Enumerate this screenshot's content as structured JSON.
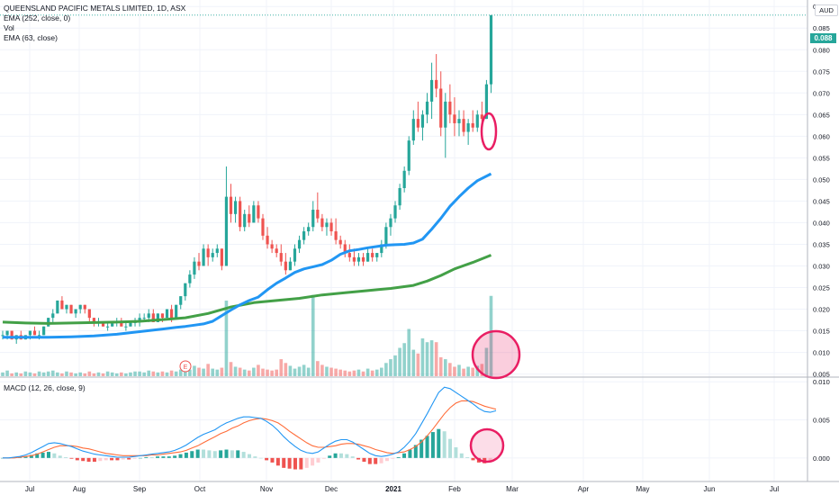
{
  "legend": {
    "title": "QUEENSLAND PACIFIC METALS LIMITED, 1D, ASX",
    "ema_slow": "EMA (252, close, 0)",
    "vol": "Vol",
    "ema_fast": "EMA (63, close)",
    "macd": "MACD (12, 26, close, 9)"
  },
  "currency": "AUD",
  "last_price_label": "0.088",
  "colors": {
    "up": "#26a69a",
    "down": "#ef5350",
    "ema_fast": "#2196f3",
    "ema_slow": "#43a047",
    "macd_line": "#2196f3",
    "signal_line": "#ff6d3a",
    "annotation": "#e91e63"
  },
  "chart_data": [
    {
      "type": "candlestick",
      "ylim": [
        0.0045,
        0.0915
      ],
      "y_ticks": [
        "0.090",
        "0.085",
        "0.080",
        "0.075",
        "0.070",
        "0.065",
        "0.060",
        "0.055",
        "0.050",
        "0.045",
        "0.040",
        "0.035",
        "0.030",
        "0.025",
        "0.020",
        "0.015",
        "0.010",
        "0.005"
      ],
      "x_ticks": [
        "Jul",
        "Aug",
        "Sep",
        "Oct",
        "Nov",
        "Dec",
        "2021",
        "Feb",
        "Mar",
        "Apr",
        "May",
        "Jun",
        "Jul"
      ],
      "candles": [
        [
          0.014,
          0.015,
          0.013,
          0.014
        ],
        [
          0.014,
          0.015,
          0.013,
          0.015
        ],
        [
          0.015,
          0.015,
          0.013,
          0.013
        ],
        [
          0.013,
          0.014,
          0.012,
          0.014
        ],
        [
          0.014,
          0.015,
          0.013,
          0.013
        ],
        [
          0.013,
          0.014,
          0.013,
          0.014
        ],
        [
          0.014,
          0.015,
          0.013,
          0.015
        ],
        [
          0.015,
          0.016,
          0.014,
          0.014
        ],
        [
          0.014,
          0.015,
          0.013,
          0.014
        ],
        [
          0.014,
          0.016,
          0.014,
          0.016
        ],
        [
          0.016,
          0.018,
          0.016,
          0.018
        ],
        [
          0.018,
          0.02,
          0.017,
          0.019
        ],
        [
          0.019,
          0.022,
          0.019,
          0.022
        ],
        [
          0.022,
          0.023,
          0.02,
          0.02
        ],
        [
          0.02,
          0.021,
          0.019,
          0.021
        ],
        [
          0.021,
          0.021,
          0.019,
          0.019
        ],
        [
          0.019,
          0.02,
          0.018,
          0.02
        ],
        [
          0.02,
          0.021,
          0.019,
          0.021
        ],
        [
          0.021,
          0.021,
          0.019,
          0.02
        ],
        [
          0.02,
          0.02,
          0.017,
          0.018
        ],
        [
          0.018,
          0.018,
          0.016,
          0.017
        ],
        [
          0.017,
          0.018,
          0.016,
          0.017
        ],
        [
          0.017,
          0.017,
          0.016,
          0.016
        ],
        [
          0.016,
          0.017,
          0.015,
          0.016
        ],
        [
          0.016,
          0.017,
          0.016,
          0.017
        ],
        [
          0.017,
          0.018,
          0.016,
          0.017
        ],
        [
          0.017,
          0.018,
          0.016,
          0.016
        ],
        [
          0.016,
          0.017,
          0.015,
          0.016
        ],
        [
          0.016,
          0.017,
          0.016,
          0.017
        ],
        [
          0.017,
          0.018,
          0.016,
          0.017
        ],
        [
          0.017,
          0.019,
          0.016,
          0.018
        ],
        [
          0.018,
          0.019,
          0.017,
          0.018
        ],
        [
          0.018,
          0.02,
          0.017,
          0.019
        ],
        [
          0.019,
          0.02,
          0.017,
          0.017
        ],
        [
          0.017,
          0.019,
          0.017,
          0.019
        ],
        [
          0.019,
          0.019,
          0.017,
          0.018
        ],
        [
          0.018,
          0.02,
          0.018,
          0.02
        ],
        [
          0.02,
          0.021,
          0.017,
          0.018
        ],
        [
          0.018,
          0.021,
          0.018,
          0.021
        ],
        [
          0.021,
          0.023,
          0.02,
          0.023
        ],
        [
          0.023,
          0.026,
          0.022,
          0.026
        ],
        [
          0.026,
          0.029,
          0.025,
          0.028
        ],
        [
          0.028,
          0.032,
          0.027,
          0.031
        ],
        [
          0.031,
          0.033,
          0.029,
          0.03
        ],
        [
          0.03,
          0.035,
          0.03,
          0.034
        ],
        [
          0.034,
          0.035,
          0.03,
          0.032
        ],
        [
          0.032,
          0.034,
          0.031,
          0.033
        ],
        [
          0.033,
          0.035,
          0.032,
          0.034
        ],
        [
          0.034,
          0.034,
          0.029,
          0.03
        ],
        [
          0.03,
          0.053,
          0.03,
          0.046
        ],
        [
          0.046,
          0.049,
          0.04,
          0.042
        ],
        [
          0.042,
          0.046,
          0.04,
          0.045
        ],
        [
          0.045,
          0.046,
          0.038,
          0.039
        ],
        [
          0.039,
          0.043,
          0.038,
          0.042
        ],
        [
          0.042,
          0.044,
          0.039,
          0.04
        ],
        [
          0.04,
          0.045,
          0.04,
          0.044
        ],
        [
          0.044,
          0.045,
          0.04,
          0.041
        ],
        [
          0.041,
          0.042,
          0.036,
          0.037
        ],
        [
          0.037,
          0.039,
          0.034,
          0.035
        ],
        [
          0.035,
          0.036,
          0.033,
          0.034
        ],
        [
          0.034,
          0.035,
          0.032,
          0.033
        ],
        [
          0.033,
          0.035,
          0.03,
          0.031
        ],
        [
          0.031,
          0.033,
          0.028,
          0.029
        ],
        [
          0.029,
          0.032,
          0.029,
          0.031
        ],
        [
          0.031,
          0.035,
          0.03,
          0.034
        ],
        [
          0.034,
          0.037,
          0.033,
          0.036
        ],
        [
          0.036,
          0.039,
          0.035,
          0.038
        ],
        [
          0.038,
          0.04,
          0.037,
          0.039
        ],
        [
          0.039,
          0.045,
          0.038,
          0.043
        ],
        [
          0.043,
          0.047,
          0.04,
          0.041
        ],
        [
          0.041,
          0.042,
          0.038,
          0.039
        ],
        [
          0.039,
          0.041,
          0.037,
          0.04
        ],
        [
          0.04,
          0.041,
          0.037,
          0.038
        ],
        [
          0.038,
          0.041,
          0.035,
          0.036
        ],
        [
          0.036,
          0.037,
          0.034,
          0.035
        ],
        [
          0.035,
          0.036,
          0.032,
          0.033
        ],
        [
          0.033,
          0.035,
          0.031,
          0.032
        ],
        [
          0.032,
          0.034,
          0.03,
          0.031
        ],
        [
          0.031,
          0.033,
          0.03,
          0.032
        ],
        [
          0.032,
          0.033,
          0.03,
          0.031
        ],
        [
          0.031,
          0.034,
          0.031,
          0.033
        ],
        [
          0.033,
          0.034,
          0.031,
          0.032
        ],
        [
          0.032,
          0.033,
          0.031,
          0.033
        ],
        [
          0.033,
          0.036,
          0.032,
          0.035
        ],
        [
          0.035,
          0.04,
          0.034,
          0.039
        ],
        [
          0.039,
          0.042,
          0.037,
          0.041
        ],
        [
          0.041,
          0.045,
          0.04,
          0.044
        ],
        [
          0.044,
          0.049,
          0.043,
          0.048
        ],
        [
          0.048,
          0.053,
          0.047,
          0.052
        ],
        [
          0.052,
          0.06,
          0.051,
          0.059
        ],
        [
          0.059,
          0.066,
          0.058,
          0.064
        ],
        [
          0.064,
          0.068,
          0.061,
          0.062
        ],
        [
          0.062,
          0.066,
          0.059,
          0.065
        ],
        [
          0.065,
          0.07,
          0.063,
          0.068
        ],
        [
          0.068,
          0.077,
          0.064,
          0.073
        ],
        [
          0.073,
          0.079,
          0.069,
          0.071
        ],
        [
          0.071,
          0.075,
          0.06,
          0.062
        ],
        [
          0.062,
          0.07,
          0.055,
          0.068
        ],
        [
          0.068,
          0.072,
          0.063,
          0.065
        ],
        [
          0.065,
          0.069,
          0.06,
          0.063
        ],
        [
          0.063,
          0.066,
          0.06,
          0.064
        ],
        [
          0.064,
          0.066,
          0.06,
          0.061
        ],
        [
          0.061,
          0.064,
          0.058,
          0.063
        ],
        [
          0.063,
          0.066,
          0.061,
          0.062
        ],
        [
          0.062,
          0.066,
          0.061,
          0.065
        ],
        [
          0.065,
          0.068,
          0.062,
          0.064
        ],
        [
          0.064,
          0.073,
          0.064,
          0.072
        ],
        [
          0.072,
          0.088,
          0.07,
          0.088
        ]
      ],
      "ema_fast": [
        0.0135,
        0.0135,
        0.0135,
        0.0136,
        0.0138,
        0.0142,
        0.0148,
        0.0154,
        0.0158,
        0.016,
        0.0163,
        0.0166,
        0.0172,
        0.0185,
        0.0198,
        0.021,
        0.022,
        0.0228,
        0.0245,
        0.026,
        0.0272,
        0.0285,
        0.0293,
        0.0298,
        0.0303,
        0.0313,
        0.0327,
        0.0335,
        0.0338,
        0.0342,
        0.0345,
        0.0348,
        0.0349,
        0.035,
        0.0353,
        0.0362,
        0.0385,
        0.041,
        0.0438,
        0.046,
        0.048,
        0.0497,
        0.0513
      ],
      "ema_fast_x": [
        0,
        5,
        10,
        15,
        20,
        25,
        30,
        35,
        38,
        40,
        42,
        44,
        46,
        48,
        50,
        52,
        54,
        56,
        58,
        60,
        62,
        64,
        66,
        68,
        70,
        72,
        74,
        76,
        78,
        80,
        82,
        84,
        86,
        88,
        90,
        92,
        94,
        96,
        98,
        100,
        102,
        104,
        107
      ],
      "ema_slow": [
        0.017,
        0.0168,
        0.0167,
        0.0168,
        0.0169,
        0.017,
        0.0172,
        0.0176,
        0.018,
        0.019,
        0.0205,
        0.0215,
        0.022,
        0.0225,
        0.0233,
        0.0238,
        0.0243,
        0.0245,
        0.0248,
        0.0255,
        0.0265,
        0.0278,
        0.0293,
        0.0308,
        0.0325
      ],
      "ema_slow_x": [
        0,
        5,
        10,
        15,
        20,
        25,
        30,
        35,
        40,
        45,
        50,
        55,
        60,
        65,
        70,
        75,
        80,
        82,
        85,
        90,
        93,
        96,
        99,
        103,
        107
      ],
      "volume": [
        0.04,
        0.06,
        0.03,
        0.04,
        0.03,
        0.05,
        0.04,
        0.03,
        0.05,
        0.04,
        0.05,
        0.06,
        0.04,
        0.03,
        0.05,
        0.04,
        0.03,
        0.04,
        0.03,
        0.05,
        0.03,
        0.04,
        0.03,
        0.05,
        0.04,
        0.03,
        0.04,
        0.03,
        0.04,
        0.05,
        0.05,
        0.04,
        0.06,
        0.05,
        0.04,
        0.05,
        0.04,
        0.06,
        0.05,
        0.07,
        0.08,
        0.07,
        0.11,
        0.09,
        0.08,
        0.13,
        0.08,
        0.07,
        0.09,
        0.8,
        0.15,
        0.1,
        0.09,
        0.07,
        0.06,
        0.09,
        0.12,
        0.08,
        0.07,
        0.06,
        0.07,
        0.18,
        0.14,
        0.11,
        0.08,
        0.1,
        0.12,
        0.09,
        0.86,
        0.16,
        0.12,
        0.1,
        0.09,
        0.08,
        0.07,
        0.06,
        0.05,
        0.06,
        0.07,
        0.05,
        0.08,
        0.06,
        0.07,
        0.09,
        0.14,
        0.18,
        0.22,
        0.3,
        0.35,
        0.5,
        0.28,
        0.24,
        0.4,
        0.36,
        0.38,
        0.36,
        0.2,
        0.18,
        0.14,
        0.1,
        0.12,
        0.08,
        0.1,
        0.09,
        0.11,
        0.13,
        0.3,
        0.85
      ],
      "annotations": [
        "circle-price",
        "circle-volume"
      ]
    },
    {
      "type": "line+histogram",
      "title": "MACD (12, 26, close, 9)",
      "ylim": [
        -0.0025,
        0.0105
      ],
      "y_ticks": [
        "0.010",
        "0.005",
        "0.000"
      ],
      "macd": [
        0,
        0,
        0.0001,
        0.0002,
        0.0004,
        0.0007,
        0.0011,
        0.0015,
        0.0019,
        0.002,
        0.0019,
        0.0017,
        0.0015,
        0.0012,
        0.0009,
        0.0007,
        0.0005,
        0.0004,
        0.0003,
        0.0002,
        0.0001,
        0.0001,
        0.0001,
        0.0002,
        0.0003,
        0.0004,
        0.0005,
        0.0006,
        0.0007,
        0.0008,
        0.001,
        0.0013,
        0.0017,
        0.0022,
        0.0027,
        0.0031,
        0.0034,
        0.0037,
        0.0042,
        0.0046,
        0.0049,
        0.0052,
        0.0054,
        0.0054,
        0.0053,
        0.0052,
        0.0048,
        0.0043,
        0.0036,
        0.0028,
        0.0021,
        0.0015,
        0.001,
        0.0007,
        0.0006,
        0.0008,
        0.0013,
        0.0018,
        0.0022,
        0.0024,
        0.0024,
        0.0021,
        0.0016,
        0.0011,
        0.0006,
        0.0003,
        0.0002,
        0.0003,
        0.0005,
        0.0008,
        0.0014,
        0.0022,
        0.0032,
        0.0045,
        0.0058,
        0.0072,
        0.0086,
        0.0093,
        0.0091,
        0.0086,
        0.0081,
        0.0076,
        0.0071,
        0.0065,
        0.0061,
        0.006,
        0.0062
      ],
      "signal": [
        0,
        0,
        0,
        0.0001,
        0.0002,
        0.0003,
        0.0005,
        0.0008,
        0.0011,
        0.0014,
        0.0016,
        0.0016,
        0.0016,
        0.0015,
        0.0013,
        0.0012,
        0.001,
        0.0008,
        0.0006,
        0.0005,
        0.0004,
        0.0003,
        0.0003,
        0.0003,
        0.0003,
        0.0003,
        0.0004,
        0.0004,
        0.0005,
        0.0006,
        0.0007,
        0.0008,
        0.001,
        0.0013,
        0.0016,
        0.002,
        0.0024,
        0.0028,
        0.0032,
        0.0035,
        0.0039,
        0.0042,
        0.0046,
        0.0049,
        0.0051,
        0.0052,
        0.0051,
        0.0049,
        0.0046,
        0.0041,
        0.0035,
        0.003,
        0.0025,
        0.002,
        0.0016,
        0.0014,
        0.0014,
        0.0015,
        0.0016,
        0.0018,
        0.0019,
        0.0019,
        0.0018,
        0.0016,
        0.0014,
        0.0011,
        0.0009,
        0.0007,
        0.0006,
        0.0007,
        0.0008,
        0.0011,
        0.0015,
        0.0021,
        0.0029,
        0.0038,
        0.0048,
        0.0058,
        0.0066,
        0.0072,
        0.0075,
        0.0075,
        0.0074,
        0.0071,
        0.0068,
        0.0066,
        0.0064
      ],
      "histogram_scale": 1.0,
      "annotations": [
        "circle-macd"
      ]
    }
  ]
}
